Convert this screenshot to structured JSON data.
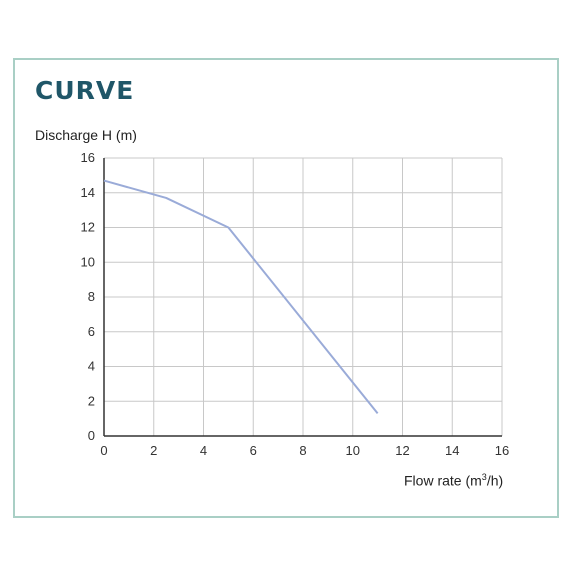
{
  "header": {
    "title": "CURVE"
  },
  "chart_data": {
    "type": "line",
    "title": "",
    "ylabel": "Discharge H (m)",
    "xlabel_text": "Flow rate (m",
    "xlabel_sup": "3",
    "xlabel_tail": "/h)",
    "xlim": [
      0,
      16
    ],
    "ylim": [
      0,
      16
    ],
    "x_ticks": [
      0,
      2,
      4,
      6,
      8,
      10,
      12,
      14,
      16
    ],
    "y_ticks": [
      0,
      2,
      4,
      6,
      8,
      10,
      12,
      14,
      16
    ],
    "grid": true,
    "series": [
      {
        "x": [
          0,
          2.5,
          5,
          11
        ],
        "y": [
          14.7,
          13.7,
          12.0,
          1.3
        ]
      }
    ],
    "colors": {
      "line": "#9aabd8",
      "grid": "#c8c8c8",
      "axis": "#333333"
    }
  }
}
